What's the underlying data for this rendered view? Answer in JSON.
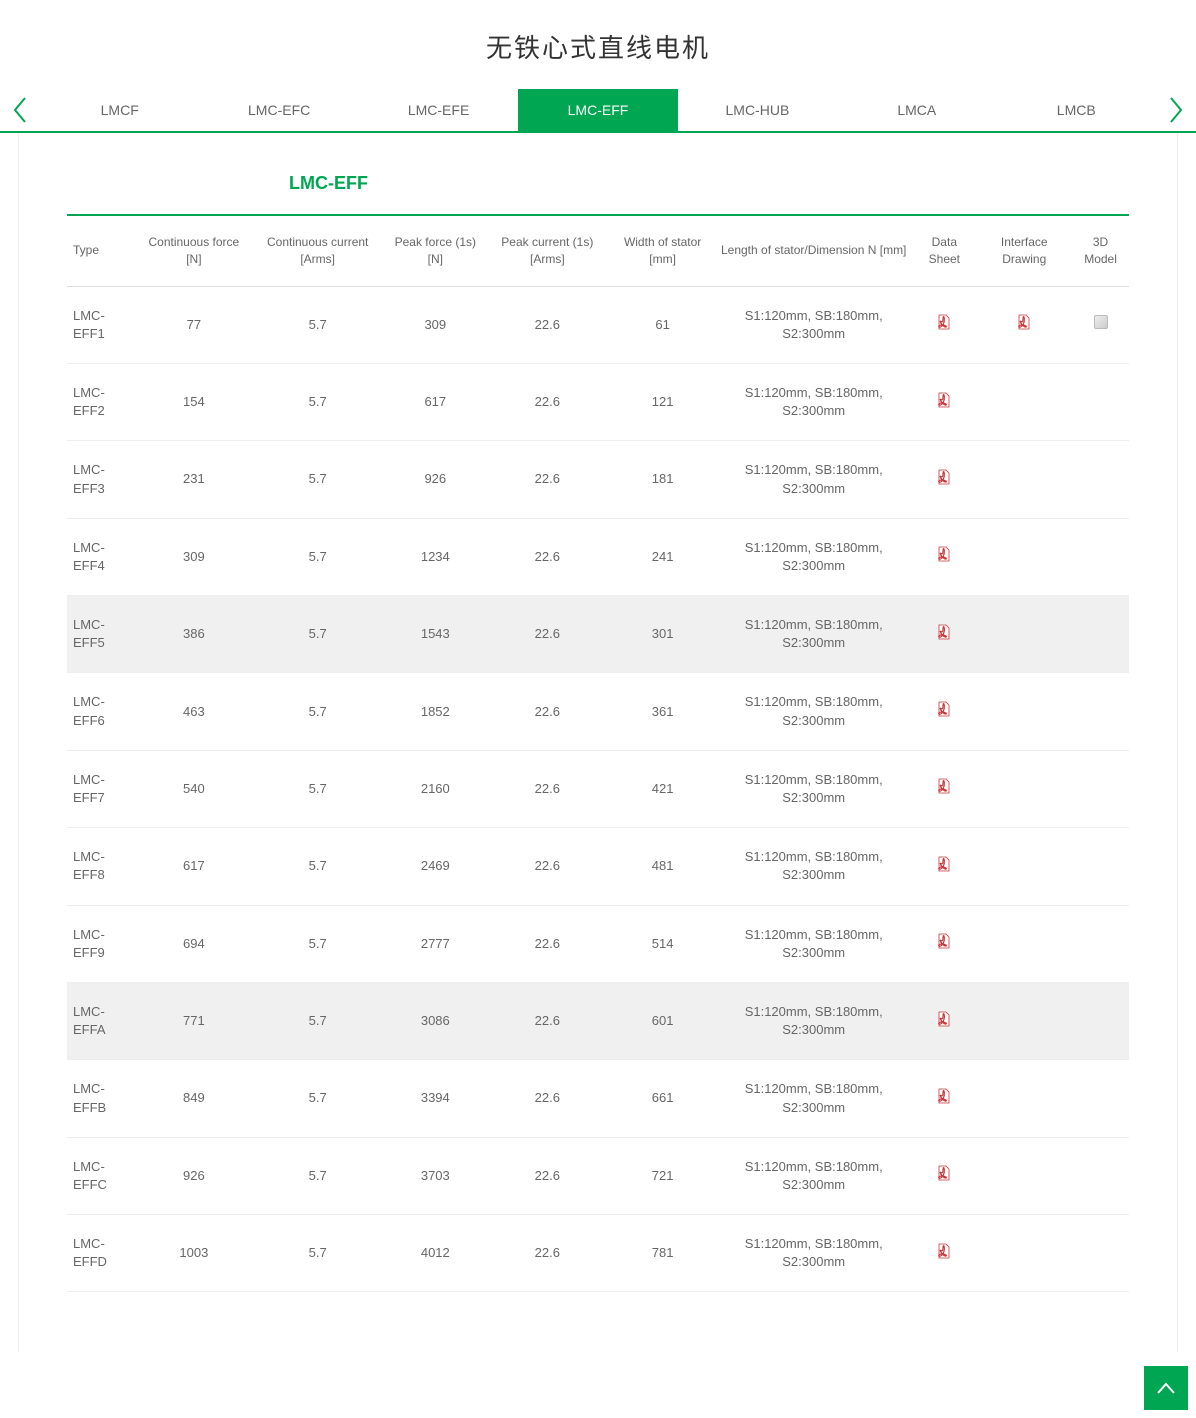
{
  "colors": {
    "accent": "#00a651",
    "text": "#666666",
    "pdf": "#c8383a"
  },
  "page_title": "无铁心式直线电机",
  "tabs": [
    "LMCF",
    "LMC-EFC",
    "LMC-EFE",
    "LMC-EFF",
    "LMC-HUB",
    "LMCA",
    "LMCB"
  ],
  "active_tab_index": 3,
  "section_title": "LMC-EFF",
  "columns": [
    "Type",
    "Continuous force [N]",
    "Continuous current [Arms]",
    "Peak force (1s) [N]",
    "Peak current (1s) [Arms]",
    "Width of stator [mm]",
    "Length of stator/Dimension N [mm]",
    "Data Sheet",
    "Interface Drawing",
    "3D Model"
  ],
  "stator_length_text": "S1:120mm, SB:180mm, S2:300mm",
  "highlight_rows": [
    4,
    9
  ],
  "rows": [
    {
      "type": "LMC-EFF1",
      "cf": "77",
      "cc": "5.7",
      "pf": "309",
      "pc": "22.6",
      "w": "61",
      "ds": true,
      "id": true,
      "m3d": true
    },
    {
      "type": "LMC-EFF2",
      "cf": "154",
      "cc": "5.7",
      "pf": "617",
      "pc": "22.6",
      "w": "121",
      "ds": true,
      "id": false,
      "m3d": false
    },
    {
      "type": "LMC-EFF3",
      "cf": "231",
      "cc": "5.7",
      "pf": "926",
      "pc": "22.6",
      "w": "181",
      "ds": true,
      "id": false,
      "m3d": false
    },
    {
      "type": "LMC-EFF4",
      "cf": "309",
      "cc": "5.7",
      "pf": "1234",
      "pc": "22.6",
      "w": "241",
      "ds": true,
      "id": false,
      "m3d": false
    },
    {
      "type": "LMC-EFF5",
      "cf": "386",
      "cc": "5.7",
      "pf": "1543",
      "pc": "22.6",
      "w": "301",
      "ds": true,
      "id": false,
      "m3d": false
    },
    {
      "type": "LMC-EFF6",
      "cf": "463",
      "cc": "5.7",
      "pf": "1852",
      "pc": "22.6",
      "w": "361",
      "ds": true,
      "id": false,
      "m3d": false
    },
    {
      "type": "LMC-EFF7",
      "cf": "540",
      "cc": "5.7",
      "pf": "2160",
      "pc": "22.6",
      "w": "421",
      "ds": true,
      "id": false,
      "m3d": false
    },
    {
      "type": "LMC-EFF8",
      "cf": "617",
      "cc": "5.7",
      "pf": "2469",
      "pc": "22.6",
      "w": "481",
      "ds": true,
      "id": false,
      "m3d": false
    },
    {
      "type": "LMC-EFF9",
      "cf": "694",
      "cc": "5.7",
      "pf": "2777",
      "pc": "22.6",
      "w": "514",
      "ds": true,
      "id": false,
      "m3d": false
    },
    {
      "type": "LMC-EFFA",
      "cf": "771",
      "cc": "5.7",
      "pf": "3086",
      "pc": "22.6",
      "w": "601",
      "ds": true,
      "id": false,
      "m3d": false
    },
    {
      "type": "LMC-EFFB",
      "cf": "849",
      "cc": "5.7",
      "pf": "3394",
      "pc": "22.6",
      "w": "661",
      "ds": true,
      "id": false,
      "m3d": false
    },
    {
      "type": "LMC-EFFC",
      "cf": "926",
      "cc": "5.7",
      "pf": "3703",
      "pc": "22.6",
      "w": "721",
      "ds": true,
      "id": false,
      "m3d": false
    },
    {
      "type": "LMC-EFFD",
      "cf": "1003",
      "cc": "5.7",
      "pf": "4012",
      "pc": "22.6",
      "w": "781",
      "ds": true,
      "id": false,
      "m3d": false
    }
  ]
}
